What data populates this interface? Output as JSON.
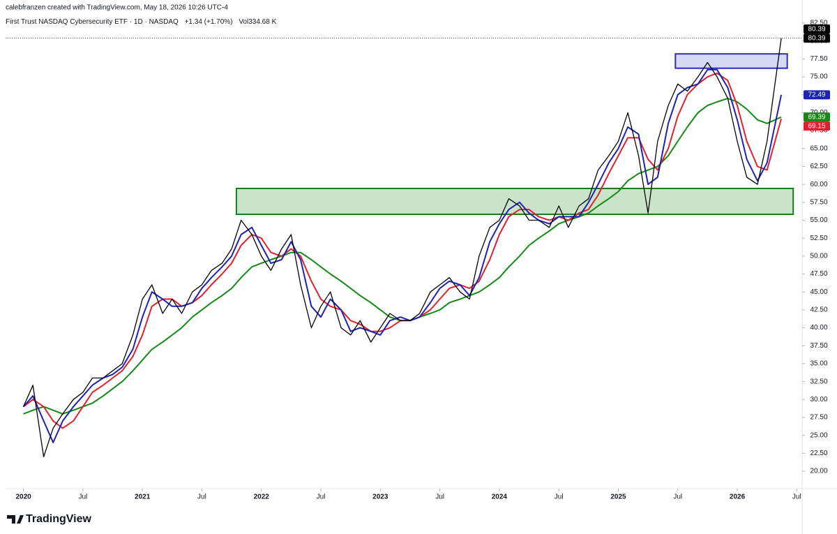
{
  "attribution": "calebfranzen created with TradingView.com, May 18, 2026 10:26 UTC-4",
  "chart_data": {
    "type": "line",
    "title": "First Trust NASDAQ Cybersecurity ETF · 1D · NASDAQ",
    "change": "+1.34 (+1.70%)",
    "volume_label": "Vol",
    "volume": "334.68 K",
    "x": [
      2020,
      2020.08,
      2020.17,
      2020.25,
      2020.33,
      2020.42,
      2020.5,
      2020.58,
      2020.67,
      2020.75,
      2020.83,
      2020.92,
      2021,
      2021.08,
      2021.17,
      2021.25,
      2021.33,
      2021.42,
      2021.5,
      2021.58,
      2021.67,
      2021.75,
      2021.83,
      2021.92,
      2022,
      2022.08,
      2022.17,
      2022.25,
      2022.33,
      2022.42,
      2022.5,
      2022.58,
      2022.67,
      2022.75,
      2022.83,
      2022.92,
      2023,
      2023.08,
      2023.17,
      2023.25,
      2023.33,
      2023.42,
      2023.5,
      2023.58,
      2023.67,
      2023.75,
      2023.83,
      2023.92,
      2024,
      2024.08,
      2024.17,
      2024.25,
      2024.33,
      2024.42,
      2024.5,
      2024.58,
      2024.67,
      2024.75,
      2024.83,
      2024.92,
      2025,
      2025.08,
      2025.17,
      2025.25,
      2025.33,
      2025.42,
      2025.5,
      2025.58,
      2025.67,
      2025.75,
      2025.83,
      2025.92,
      2026,
      2026.08,
      2026.17,
      2026.25,
      2026.37
    ],
    "series": [
      {
        "color": "#000000",
        "width": 1.3,
        "values": [
          29,
          32,
          22,
          26,
          28,
          30,
          31,
          33,
          33,
          34,
          35,
          39,
          44,
          46,
          42,
          44,
          42,
          45,
          46,
          48,
          49,
          51,
          55,
          53,
          50,
          48,
          51,
          53,
          46,
          40,
          43,
          45,
          40,
          39,
          41,
          38,
          40,
          42,
          41,
          41,
          42,
          45,
          46,
          47,
          45,
          44,
          50,
          54,
          55,
          58,
          57,
          55,
          55,
          54,
          57,
          54,
          57,
          58,
          62,
          64,
          66,
          70,
          64,
          56,
          66,
          71,
          74,
          73,
          75,
          77,
          75,
          72,
          66,
          61,
          60,
          66,
          80.39
        ]
      },
      {
        "color": "#1c22b5",
        "width": 2,
        "values": [
          29,
          30.5,
          27,
          24,
          27,
          29,
          30.5,
          32,
          33,
          33.5,
          34.5,
          37,
          41.5,
          45,
          44,
          43,
          43,
          43.5,
          45.5,
          47,
          48.5,
          50,
          53,
          54,
          51.5,
          49,
          49.5,
          52,
          49.5,
          43,
          41.5,
          44,
          42.5,
          39.5,
          40,
          39.5,
          39,
          41,
          41.5,
          41,
          41.5,
          43.5,
          45.5,
          46.5,
          46,
          44.5,
          47,
          52,
          54.5,
          56.5,
          57.5,
          56,
          55,
          54.5,
          55.5,
          55.5,
          55.5,
          57.5,
          60,
          63,
          65,
          68,
          67,
          60,
          61,
          68.5,
          72.5,
          73.5,
          74,
          76,
          76,
          73.5,
          69,
          63.5,
          60.5,
          63,
          72.49
        ]
      },
      {
        "color": "#e0202e",
        "width": 2,
        "values": [
          29,
          30,
          29,
          27,
          26,
          27,
          29,
          31,
          32,
          33,
          34,
          36,
          39,
          43,
          44,
          44,
          43,
          43.5,
          44.5,
          46,
          47.5,
          49,
          51.5,
          53,
          52.5,
          50.5,
          50,
          51,
          50,
          46.5,
          44,
          43,
          42.5,
          41,
          40.5,
          39.5,
          39.5,
          40,
          41,
          41,
          41.5,
          42.5,
          44,
          45.5,
          46,
          45.5,
          46.5,
          49.5,
          53,
          55.5,
          56.5,
          56.5,
          55.5,
          55,
          55.5,
          55,
          56,
          56.5,
          58.5,
          61.5,
          64,
          66.5,
          66.5,
          63.5,
          62,
          65,
          69.5,
          72.5,
          74,
          75,
          75.5,
          74.5,
          71,
          66,
          62.5,
          62,
          69.15
        ]
      },
      {
        "color": "#138a13",
        "width": 2,
        "values": [
          28,
          28.5,
          29,
          28.5,
          28,
          28.5,
          29,
          29.5,
          30.5,
          31.5,
          32.5,
          34,
          35.5,
          37,
          38,
          39,
          40,
          41.5,
          42.5,
          43.5,
          44.5,
          45.5,
          47,
          48.5,
          49,
          49.5,
          50,
          50.5,
          50.5,
          49.5,
          48.5,
          47.5,
          46.5,
          45.5,
          44.5,
          43.5,
          42.5,
          41.5,
          41,
          41,
          41.5,
          42,
          42.5,
          43.5,
          44,
          44.5,
          45,
          46,
          47,
          48.5,
          50,
          51.5,
          52.5,
          53.5,
          54.5,
          55,
          55.5,
          56,
          57,
          58,
          59,
          60.5,
          61.5,
          62,
          62.5,
          64,
          66,
          68,
          70,
          71,
          71.5,
          72,
          71.5,
          70.5,
          69,
          68.5,
          69.39
        ]
      }
    ],
    "price_line": 80.39,
    "zones": [
      {
        "xlim": [
          2021.79,
          2026.47
        ],
        "ylim": [
          55.83,
          59.43
        ],
        "color": "#1b7a1b",
        "fill": "#c9e4c9"
      },
      {
        "xlim": [
          2025.48,
          2026.42
        ],
        "ylim": [
          76.2,
          78.2
        ],
        "color": "#2a2fb8",
        "fill": "#d7d8f4"
      }
    ],
    "xlim": [
      2019.85,
      2026.545
    ],
    "ylim": [
      17.57,
      83.28
    ],
    "xticks": [
      2020,
      {
        "value": 2020.5,
        "label": "Jul"
      },
      2021,
      {
        "value": 2021.5,
        "label": "Jul"
      },
      2022,
      {
        "value": 2022.5,
        "label": "Jul"
      },
      2023,
      {
        "value": 2023.5,
        "label": "Jul"
      },
      2024,
      {
        "value": 2024.5,
        "label": "Jul"
      },
      2025,
      {
        "value": 2025.5,
        "label": "Jul"
      },
      2026,
      {
        "value": 2026.5,
        "label": "Jul"
      }
    ],
    "yticks": [
      {
        "value": 20,
        "label": "20.00"
      },
      {
        "value": 22.5,
        "label": "22.50"
      },
      {
        "value": 25,
        "label": "25.00"
      },
      {
        "value": 27.5,
        "label": "27.50"
      },
      {
        "value": 30,
        "label": "30.00"
      },
      {
        "value": 32.5,
        "label": "32.50"
      },
      {
        "value": 35,
        "label": "35.00"
      },
      {
        "value": 37.5,
        "label": "37.50"
      },
      {
        "value": 40,
        "label": "40.00"
      },
      {
        "value": 42.5,
        "label": "42.50"
      },
      {
        "value": 45,
        "label": "45.00"
      },
      {
        "value": 47.5,
        "label": "47.50"
      },
      {
        "value": 50,
        "label": "50.00"
      },
      {
        "value": 52.5,
        "label": "52.50"
      },
      {
        "value": 55,
        "label": "55.00"
      },
      {
        "value": 57.5,
        "label": "57.50"
      },
      {
        "value": 60,
        "label": "60.00"
      },
      {
        "value": 62.5,
        "label": "62.50"
      },
      {
        "value": 65,
        "label": "65.00"
      },
      {
        "value": 67.5,
        "label": "67.50"
      },
      {
        "value": 70,
        "label": "70.00"
      },
      {
        "value": 72.5,
        "label": "72.50"
      },
      {
        "value": 75,
        "label": "75.00"
      },
      {
        "value": 77.5,
        "label": "77.50"
      },
      {
        "value": 80,
        "label": "80.00"
      },
      {
        "value": 82.5,
        "label": "82.50"
      }
    ]
  },
  "logo": "TradingView"
}
